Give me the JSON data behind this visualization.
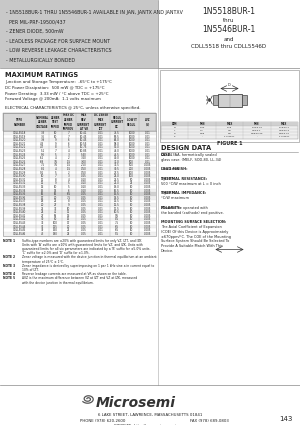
{
  "bg_color": "#c8c8c8",
  "white": "#ffffff",
  "black": "#111111",
  "dark_gray": "#222222",
  "mid_gray": "#555555",
  "light_gray": "#bbbbbb",
  "header_left_lines": [
    "  - 1N5518BUR-1 THRU 1N5546BUR-1 AVAILABLE IN JAN, JANTX AND JANTXV",
    "    PER MIL-PRF-19500/437",
    "  - ZENER DIODE, 500mW",
    "  - LEADLESS PACKAGE FOR SURFACE MOUNT",
    "  - LOW REVERSE LEAKAGE CHARACTERISTICS",
    "  - METALLURGICALLY BONDED"
  ],
  "header_right_lines": [
    "1N5518BUR-1",
    "thru",
    "1N5546BUR-1",
    "and",
    "CDLL5518 thru CDLL5546D"
  ],
  "max_ratings_title": "MAXIMUM RATINGS",
  "max_ratings_lines": [
    "Junction and Storage Temperature:  -65°C to +175°C",
    "DC Power Dissipation:  500 mW @ TDC = +175°C",
    "Power Derating:  3.33 mW / °C above TDC = +25°C",
    "Forward Voltage @ 200mA:  1.1 volts maximum"
  ],
  "elec_char_title": "ELECTRICAL CHARACTERISTICS @ 25°C, unless otherwise specified.",
  "figure1_label": "FIGURE 1",
  "design_data_title": "DESIGN DATA",
  "design_data_lines": [
    [
      "CASE:",
      "DO-213AA, hermetically sealed"
    ],
    [
      "",
      "glass case. (MELF, SOD-80, LL-34)"
    ],
    [
      "",
      ""
    ],
    [
      "LEAD FINISH:",
      "Tin / Lead"
    ],
    [
      "",
      ""
    ],
    [
      "THERMAL RESISTANCE:",
      "(θJC)CT:"
    ],
    [
      "",
      "500 °C/W maximum at L = 0 inch"
    ],
    [
      "",
      ""
    ],
    [
      "THERMAL IMPEDANCE:",
      "(θJL): 70"
    ],
    [
      "",
      "°C/W maximum"
    ],
    [
      "",
      ""
    ],
    [
      "POLARITY:",
      "Diode to be operated with"
    ],
    [
      "",
      "the banded (cathode) end positive."
    ],
    [
      "",
      ""
    ],
    [
      "MOUNTING SURFACE SELECTION:",
      ""
    ],
    [
      "",
      "The Axial Coefficient of Expansion"
    ],
    [
      "",
      "(COE) Of this Device is Approximately"
    ],
    [
      "",
      "±670ppm/°C. The COE of the Mounting"
    ],
    [
      "",
      "Surface System Should Be Selected To"
    ],
    [
      "",
      "Provide A Suitable Match With This"
    ],
    [
      "",
      "Device."
    ]
  ],
  "footer_logo_text": "Microsemi",
  "footer_address": "6 LAKE STREET, LAWRENCE, MASSACHUSETTS 01841",
  "footer_phone": "PHONE (978) 620-2600",
  "footer_fax": "FAX (978) 689-0803",
  "footer_website": "WEBSITE: http://www.microsemi.com",
  "page_number": "143",
  "col_header_row1": [
    "TYPE",
    "NOMINAL",
    "ZENER",
    "MAX DC ZENER",
    "MAXIMUM REVERSE",
    "DC ZENER",
    "REGULATOR",
    "LOW"
  ],
  "col_header_row2": [
    "NUMBER",
    "ZENER",
    "TEST",
    "IMPEDANCE",
    "CURRENT AT",
    "MAXIMUM",
    "CURRENT",
    "IT"
  ],
  "col_header_row3": [
    "",
    "VOLTAGE",
    "IMPEDANCE",
    "IMPROVEMENT",
    "RATED VOLTAGE",
    "DC CURRENT",
    "DC VALUES",
    "REGULATOR"
  ],
  "col_header_sub1": [
    "",
    "Rated type",
    "VZT",
    "Rated type VZK",
    "IR",
    "Imax | IZK-IZM",
    "IZMT",
    ""
  ],
  "col_header_sub2": [
    "NOTES 1)",
    "VOLTS (1)",
    "mA",
    "(OHMS (1)",
    "AT VR",
    "Imax | VOLTS",
    "mA",
    "AVG"
  ],
  "col_header_units": [
    "",
    "VOLTS",
    "OHM",
    "OHM",
    "μA",
    "mA",
    "mA",
    "mA",
    "V"
  ],
  "table_rows": [
    [
      "CDLL5518",
      "3.3",
      "10",
      "7",
      "10.41",
      "0.01",
      "75.5",
      "1000",
      "0.01"
    ],
    [
      "CDLL5519",
      "3.6",
      "10",
      "7",
      "10.45",
      "0.01",
      "69.5",
      "1000",
      "0.01"
    ],
    [
      "CDLL5520",
      "3.9",
      "9",
      "6",
      "10.45",
      "0.01",
      "64.0",
      "1000",
      "0.01"
    ],
    [
      "CDLL5521",
      "4.3",
      "9",
      "6",
      "10.55",
      "0.01",
      "58.0",
      "1000",
      "0.01"
    ],
    [
      "CDLL5522",
      "4.7",
      "8",
      "5",
      "10.75",
      "0.01",
      "53.0",
      "1000",
      "0.01"
    ],
    [
      "CDLL5523",
      "5.1",
      "7",
      "4",
      "10.85",
      "0.01",
      "49.0",
      "1000",
      "0.01"
    ],
    [
      "CDLL5524",
      "5.6",
      "5",
      "3",
      "5.40",
      "0.01",
      "44.5",
      "1000",
      "0.01"
    ],
    [
      "CDLL5525",
      "6.2",
      "4",
      "2",
      "3.20",
      "0.01",
      "40.0",
      "1000",
      "0.01"
    ],
    [
      "CDLL5526",
      "6.8",
      "3.5",
      "1.5",
      "3.00",
      "0.01",
      "37.0",
      "500",
      "0.01"
    ],
    [
      "CDLL5527",
      "7.5",
      "3.5",
      "1.5",
      "2.50",
      "0.01",
      "33.5",
      "500",
      "0.005"
    ],
    [
      "CDLL5528",
      "8.2",
      "4",
      "1.5",
      "0.50",
      "0.01",
      "30.5",
      "200",
      "0.005"
    ],
    [
      "CDLL5529",
      "9.1",
      "5",
      "2",
      "0.50",
      "0.01",
      "27.5",
      "100",
      "0.005"
    ],
    [
      "CDLL5530",
      "10",
      "7",
      "3",
      "0.25",
      "0.01",
      "25.0",
      "100",
      "0.005"
    ],
    [
      "CDLL5531",
      "11",
      "8",
      "4",
      "0.10",
      "0.01",
      "22.5",
      "50",
      "0.005"
    ],
    [
      "CDLL5532",
      "12",
      "9",
      "5",
      "0.10",
      "0.01",
      "21.0",
      "25",
      "0.005"
    ],
    [
      "CDLL5533",
      "13",
      "10",
      "5",
      "0.10",
      "0.01",
      "19.0",
      "10",
      "0.005"
    ],
    [
      "CDLL5534",
      "15",
      "14",
      "6",
      "0.10",
      "0.01",
      "16.5",
      "10",
      "0.005"
    ],
    [
      "CDLL5535",
      "16",
      "16",
      "6.5",
      "0.05",
      "0.01",
      "15.5",
      "10",
      "0.005"
    ],
    [
      "CDLL5536",
      "17",
      "20",
      "7.5",
      "0.05",
      "0.01",
      "14.5",
      "10",
      "0.005"
    ],
    [
      "CDLL5537",
      "18",
      "22",
      "8",
      "0.05",
      "0.01",
      "13.5",
      "10",
      "0.005"
    ],
    [
      "CDLL5538",
      "20",
      "27",
      "9",
      "0.05",
      "0.01",
      "12.5",
      "10",
      "0.005"
    ],
    [
      "CDLL5539",
      "22",
      "33",
      "10",
      "0.05",
      "0.01",
      "11.5",
      "10",
      "0.005"
    ],
    [
      "CDLL5540",
      "24",
      "41",
      "11",
      "0.05",
      "0.01",
      "10.5",
      "10",
      "0.005"
    ],
    [
      "CDLL5541",
      "27",
      "56",
      "13",
      "0.05",
      "0.01",
      "9.5",
      "10",
      "0.005"
    ],
    [
      "CDLL5542",
      "30",
      "80",
      "15",
      "0.05",
      "0.01",
      "8.5",
      "10",
      "0.005"
    ],
    [
      "CDLL5543",
      "33",
      "100",
      "17",
      "0.05",
      "0.01",
      "7.5",
      "10",
      "0.005"
    ],
    [
      "CDLL5544",
      "36",
      "125",
      "20",
      "0.05",
      "0.01",
      "6.5",
      "10",
      "0.005"
    ],
    [
      "CDLL5545",
      "39",
      "150",
      "22",
      "0.05",
      "0.01",
      "6.5",
      "10",
      "0.005"
    ],
    [
      "CDLL5546",
      "43",
      "190",
      "25",
      "0.05",
      "0.01",
      "5.5",
      "10",
      "0.005"
    ]
  ],
  "note_lines": [
    [
      "NOTE 1",
      "Suffix-type numbers are ±20% with guaranteed limits for only VZ, IZT, and IZK."
    ],
    [
      "",
      "Units with 'A' suffix are ±10% with guaranteed limits for VZ, and IZK. Units with"
    ],
    [
      "",
      "guaranteed limits for all six parameters are indicated by a 'B' suffix for ±5.0% units,"
    ],
    [
      "",
      "'C' suffix for ±2.0% and 'D' suffix for ±1.0%."
    ],
    [
      "NOTE 2",
      "Zener voltage is measured with the device junction in thermal equilibrium at an ambient"
    ],
    [
      "",
      "temperature of 25°C ± 1°C."
    ],
    [
      "NOTE 3",
      "Zener impedance is derived by superimposing on 1 per 1 kHz sine a in current equal to"
    ],
    [
      "",
      "10% of IZT."
    ],
    [
      "NOTE 4",
      "Reverse leakage currents are measured at VR as shown on the table."
    ],
    [
      "NOTE 5",
      "ΔVZ is the maximum difference between VZ at IZT and VZ at IZK, measured"
    ],
    [
      "",
      "with the device junction in thermal equilibrium."
    ]
  ],
  "dim_table": {
    "headers": [
      "DIM",
      "MIL LEAD TYPE",
      "",
      "PRECISION",
      ""
    ],
    "subheaders": [
      "",
      "MIN",
      "MAX",
      "MIN",
      "MAX"
    ],
    "rows": [
      [
        "D",
        "1.90",
        "2.15",
        "1.9±0.05",
        "2.15±0.1"
      ],
      [
        "L",
        "4.1",
        "4.6",
        "3.5±0.1",
        "4.60±0.3"
      ],
      [
        "d",
        "0.55",
        "0.8",
        "0.55±0.05",
        "0.8±0.05"
      ],
      [
        "P",
        "-",
        "1.5 REFc",
        "-",
        "1.5 REFc"
      ]
    ]
  }
}
